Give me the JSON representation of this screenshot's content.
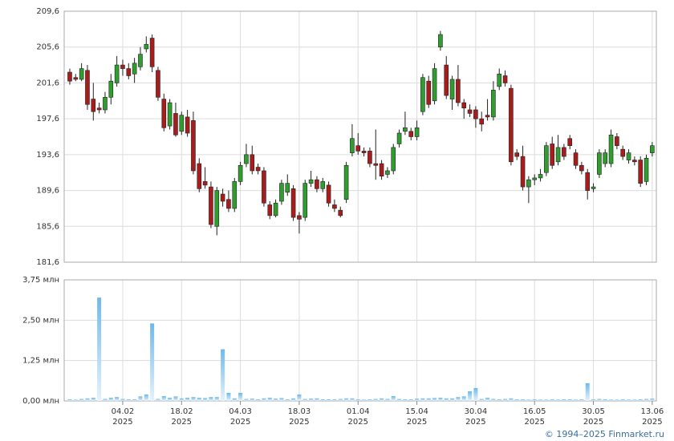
{
  "chart_data": [
    {
      "type": "candlestick",
      "up_color": "#2f9e2f",
      "down_color": "#a81c1c",
      "open": [
        202.8,
        202.2,
        202.0,
        203.0,
        199.8,
        198.8,
        198.6,
        200.0,
        201.6,
        203.6,
        203.2,
        202.6,
        203.4,
        205.4,
        206.6,
        203.0,
        199.8,
        196.8,
        198.2,
        196.2,
        197.8,
        197.4,
        192.6,
        190.6,
        190.0,
        185.6,
        189.2,
        188.6,
        187.6,
        190.6,
        192.6,
        193.6,
        192.2,
        191.8,
        188.0,
        186.8,
        188.4,
        189.4,
        189.8,
        186.8,
        186.6,
        190.4,
        190.8,
        189.8,
        190.2,
        188.0,
        187.4,
        188.6,
        193.8,
        194.6,
        194.0,
        194.0,
        192.6,
        192.6,
        191.4,
        191.8,
        194.8,
        196.2,
        196.2,
        195.6,
        198.4,
        201.8,
        199.6,
        205.6,
        203.6,
        199.8,
        202.0,
        199.4,
        198.6,
        198.6,
        197.6,
        198.0,
        197.8,
        201.2,
        202.4,
        201.0,
        193.8,
        193.4,
        190.0,
        190.8,
        191.0,
        191.6,
        194.8,
        192.8,
        194.4,
        195.4,
        193.8,
        192.4,
        191.6,
        189.8,
        191.4,
        192.6,
        192.6,
        195.6,
        194.2,
        193.0,
        193.0,
        193.0,
        190.6,
        193.8
      ],
      "high": [
        203.2,
        202.6,
        203.8,
        203.6,
        201.6,
        199.4,
        200.6,
        202.6,
        204.6,
        204.2,
        203.8,
        204.4,
        205.6,
        206.8,
        207.0,
        203.4,
        200.4,
        199.8,
        199.4,
        198.4,
        198.6,
        198.4,
        193.2,
        192.2,
        190.6,
        190.0,
        189.8,
        189.6,
        191.0,
        192.8,
        194.8,
        194.6,
        192.6,
        192.2,
        188.4,
        188.6,
        190.8,
        191.4,
        190.2,
        187.2,
        190.8,
        191.8,
        191.2,
        191.0,
        190.6,
        188.6,
        187.8,
        192.8,
        197.0,
        196.0,
        194.4,
        194.4,
        196.4,
        193.0,
        192.2,
        194.8,
        196.4,
        198.4,
        196.6,
        197.4,
        202.6,
        202.4,
        203.8,
        207.4,
        204.6,
        202.4,
        203.6,
        199.8,
        199.2,
        199.0,
        198.4,
        199.8,
        201.8,
        203.2,
        203.0,
        201.4,
        194.2,
        194.6,
        191.2,
        191.4,
        192.0,
        195.0,
        195.6,
        195.8,
        194.8,
        195.8,
        194.2,
        192.8,
        192.0,
        190.4,
        194.2,
        194.2,
        196.4,
        196.0,
        194.6,
        194.2,
        193.4,
        193.4,
        193.6,
        195.0
      ],
      "low": [
        201.4,
        201.8,
        201.8,
        198.6,
        197.4,
        198.2,
        198.2,
        199.2,
        201.2,
        202.4,
        202.0,
        201.6,
        203.0,
        205.0,
        202.8,
        199.6,
        196.2,
        196.4,
        195.6,
        195.8,
        195.6,
        191.4,
        189.4,
        189.8,
        185.4,
        184.6,
        187.8,
        187.2,
        187.2,
        190.2,
        192.2,
        191.4,
        191.4,
        187.8,
        186.4,
        186.6,
        188.0,
        189.0,
        186.2,
        184.8,
        186.2,
        190.0,
        189.4,
        189.4,
        187.8,
        187.2,
        186.6,
        188.2,
        193.4,
        193.6,
        193.4,
        192.2,
        190.8,
        190.8,
        191.0,
        191.4,
        194.4,
        195.8,
        195.2,
        195.2,
        198.0,
        198.8,
        199.2,
        205.2,
        199.8,
        198.6,
        199.0,
        197.6,
        197.8,
        196.6,
        196.2,
        197.4,
        197.4,
        200.8,
        201.2,
        192.4,
        193.0,
        189.6,
        188.2,
        190.2,
        190.6,
        191.2,
        192.0,
        192.4,
        193.0,
        194.2,
        192.0,
        191.4,
        188.6,
        189.4,
        191.0,
        192.2,
        192.2,
        194.2,
        193.0,
        192.6,
        192.4,
        190.0,
        190.2,
        193.4
      ],
      "close": [
        201.8,
        202.0,
        203.2,
        199.2,
        198.4,
        198.6,
        200.0,
        201.8,
        203.6,
        203.2,
        202.4,
        203.8,
        204.8,
        205.9,
        203.4,
        200.0,
        196.6,
        199.4,
        195.8,
        198.0,
        196.0,
        191.8,
        189.8,
        190.2,
        185.8,
        189.6,
        188.4,
        187.6,
        190.6,
        192.4,
        193.6,
        191.8,
        191.8,
        188.2,
        186.8,
        188.2,
        190.4,
        190.4,
        186.6,
        186.4,
        190.4,
        190.8,
        189.8,
        190.6,
        188.2,
        187.6,
        186.8,
        192.4,
        195.4,
        194.0,
        193.8,
        192.6,
        192.4,
        191.2,
        191.8,
        194.4,
        196.0,
        196.6,
        195.6,
        196.6,
        202.2,
        199.2,
        203.2,
        207.0,
        200.2,
        202.0,
        199.4,
        198.8,
        198.2,
        197.6,
        197.0,
        197.8,
        200.8,
        202.6,
        201.6,
        192.8,
        193.4,
        190.0,
        190.8,
        191.0,
        191.4,
        194.6,
        192.4,
        194.4,
        193.4,
        194.6,
        192.4,
        191.8,
        189.6,
        190.0,
        193.8,
        193.8,
        195.8,
        194.6,
        193.4,
        193.8,
        192.8,
        190.4,
        193.2,
        194.6
      ],
      "xlim": [
        -0.95,
        99.7
      ],
      "ylim": [
        181.6,
        209.6
      ],
      "yticks": [
        {
          "value": 209.6,
          "label": "209,6"
        },
        {
          "value": 205.6,
          "label": "205,6"
        },
        {
          "value": 201.6,
          "label": "201,6"
        },
        {
          "value": 197.6,
          "label": "197,6"
        },
        {
          "value": 193.6,
          "label": "193,6"
        },
        {
          "value": 189.6,
          "label": "189,6"
        },
        {
          "value": 185.6,
          "label": "185,6"
        },
        {
          "value": 181.6,
          "label": "181,6"
        }
      ],
      "xticks": [
        9,
        19,
        29,
        39,
        49,
        59,
        69,
        79,
        89,
        99
      ],
      "grid": true
    },
    {
      "type": "bar",
      "color": "#6fb8ec",
      "values": [
        0.05,
        0.04,
        0.06,
        0.08,
        0.1,
        3.2,
        0.06,
        0.1,
        0.12,
        0.06,
        0.05,
        0.05,
        0.14,
        0.2,
        2.4,
        0.06,
        0.15,
        0.1,
        0.14,
        0.08,
        0.1,
        0.12,
        0.1,
        0.09,
        0.12,
        0.12,
        1.6,
        0.25,
        0.08,
        0.25,
        0.06,
        0.07,
        0.05,
        0.08,
        0.1,
        0.07,
        0.09,
        0.05,
        0.08,
        0.2,
        0.06,
        0.07,
        0.08,
        0.05,
        0.05,
        0.05,
        0.06,
        0.08,
        0.08,
        0.05,
        0.04,
        0.05,
        0.06,
        0.08,
        0.06,
        0.15,
        0.06,
        0.05,
        0.05,
        0.07,
        0.08,
        0.08,
        0.09,
        0.1,
        0.08,
        0.08,
        0.12,
        0.14,
        0.3,
        0.4,
        0.06,
        0.1,
        0.06,
        0.05,
        0.06,
        0.08,
        0.05,
        0.05,
        0.04,
        0.05,
        0.04,
        0.04,
        0.05,
        0.04,
        0.05,
        0.05,
        0.04,
        0.05,
        0.55,
        0.05,
        0.06,
        0.05,
        0.04,
        0.04,
        0.05,
        0.04,
        0.04,
        0.05,
        0.06,
        0.07
      ],
      "xlim": [
        -0.95,
        99.7
      ],
      "ylim": [
        0,
        3.75
      ],
      "yticks": [
        {
          "value": 3.75,
          "label": "3,75 млн"
        },
        {
          "value": 2.5,
          "label": "2,50 млн"
        },
        {
          "value": 1.25,
          "label": "1,25 млн"
        },
        {
          "value": 0,
          "label": "0,00 млн"
        }
      ],
      "xticks": [
        {
          "value": 9,
          "label": "04.02",
          "year": "2025"
        },
        {
          "value": 19,
          "label": "18.02",
          "year": "2025"
        },
        {
          "value": 29,
          "label": "04.03",
          "year": "2025"
        },
        {
          "value": 39,
          "label": "18.03",
          "year": "2025"
        },
        {
          "value": 49,
          "label": "01.04",
          "year": "2025"
        },
        {
          "value": 59,
          "label": "15.04",
          "year": "2025"
        },
        {
          "value": 69,
          "label": "30.04",
          "year": "2025"
        },
        {
          "value": 79,
          "label": "16.05",
          "year": "2025"
        },
        {
          "value": 89,
          "label": "30.05",
          "year": "2025"
        },
        {
          "value": 99,
          "label": "13.06",
          "year": "2025"
        }
      ],
      "grid": true
    }
  ],
  "footer": "© 1994–2025 Finmarket.ru"
}
